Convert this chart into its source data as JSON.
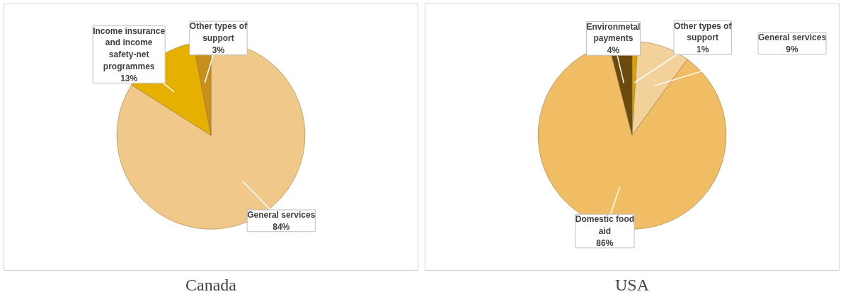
{
  "chart_data": [
    {
      "type": "pie",
      "title": "Canada",
      "categories": [
        "General services",
        "Income insurance and income safety-net programmes",
        "Other types of support"
      ],
      "values": [
        84,
        13,
        3
      ],
      "value_labels": [
        "84%",
        "13%",
        "3%"
      ],
      "colors": [
        "#f0c98a",
        "#e6b000",
        "#c8901a"
      ]
    },
    {
      "type": "pie",
      "title": "USA",
      "categories": [
        "Other types of support",
        "General services",
        "Domestic food aid",
        "Environmetal payments"
      ],
      "values": [
        1,
        9,
        86,
        4
      ],
      "value_labels": [
        "1%",
        "9%",
        "86%",
        "4%"
      ],
      "colors": [
        "#d9a400",
        "#f2d29a",
        "#f0bd65",
        "#6b4a10"
      ]
    }
  ]
}
